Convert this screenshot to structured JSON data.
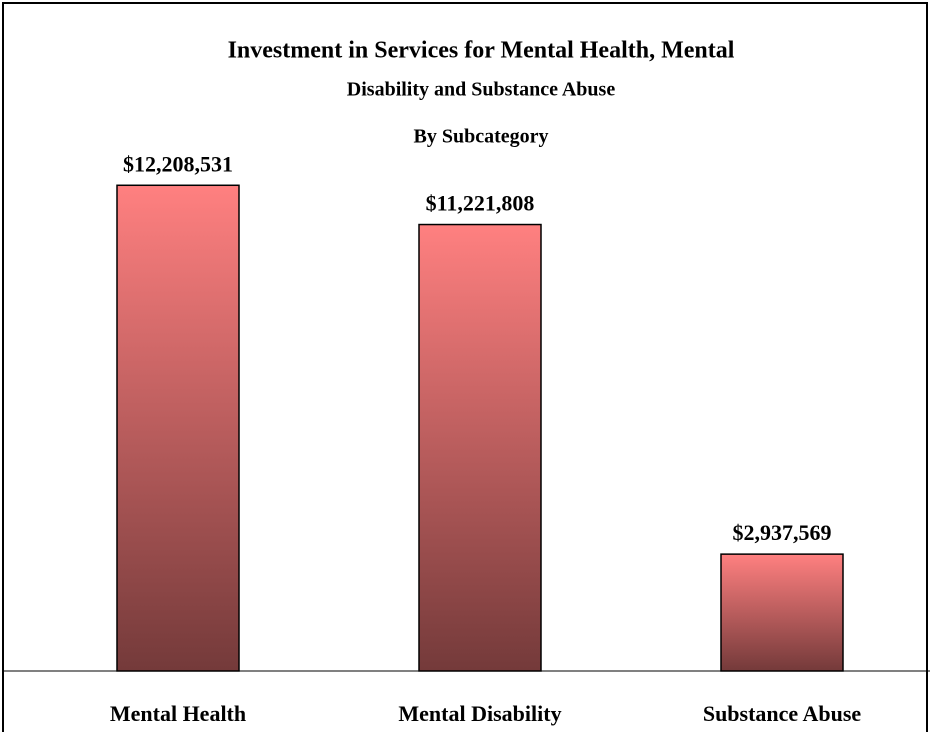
{
  "chart_data": {
    "type": "bar",
    "title": [
      "Investment in Services for Mental Health, Mental",
      "Disability and Substance Abuse"
    ],
    "subtitle": "By Subcategory",
    "categories": [
      "Mental Health",
      "Mental Disability",
      "Substance Abuse"
    ],
    "values": [
      12208531,
      11221808,
      2937569
    ],
    "value_labels": [
      "$12,208,531",
      "$11,221,808",
      "$2,937,569"
    ],
    "color": "#ff8080",
    "color_bottom": "#743a3a",
    "ylim": [
      0,
      14000000
    ]
  }
}
